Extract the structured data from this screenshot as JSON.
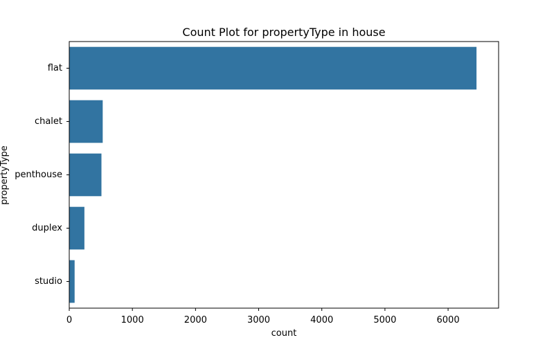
{
  "chart_data": {
    "type": "bar",
    "orientation": "horizontal",
    "title": "Count Plot for propertyType in house",
    "xlabel": "count",
    "ylabel": "propertyType",
    "categories": [
      "flat",
      "chalet",
      "penthouse",
      "duplex",
      "studio"
    ],
    "values": [
      6450,
      530,
      510,
      240,
      85
    ],
    "xlim": [
      0,
      6800
    ],
    "xticks": [
      0,
      1000,
      2000,
      3000,
      4000,
      5000,
      6000
    ],
    "bar_color": "#3274a1",
    "grid": false,
    "legend": "none"
  }
}
